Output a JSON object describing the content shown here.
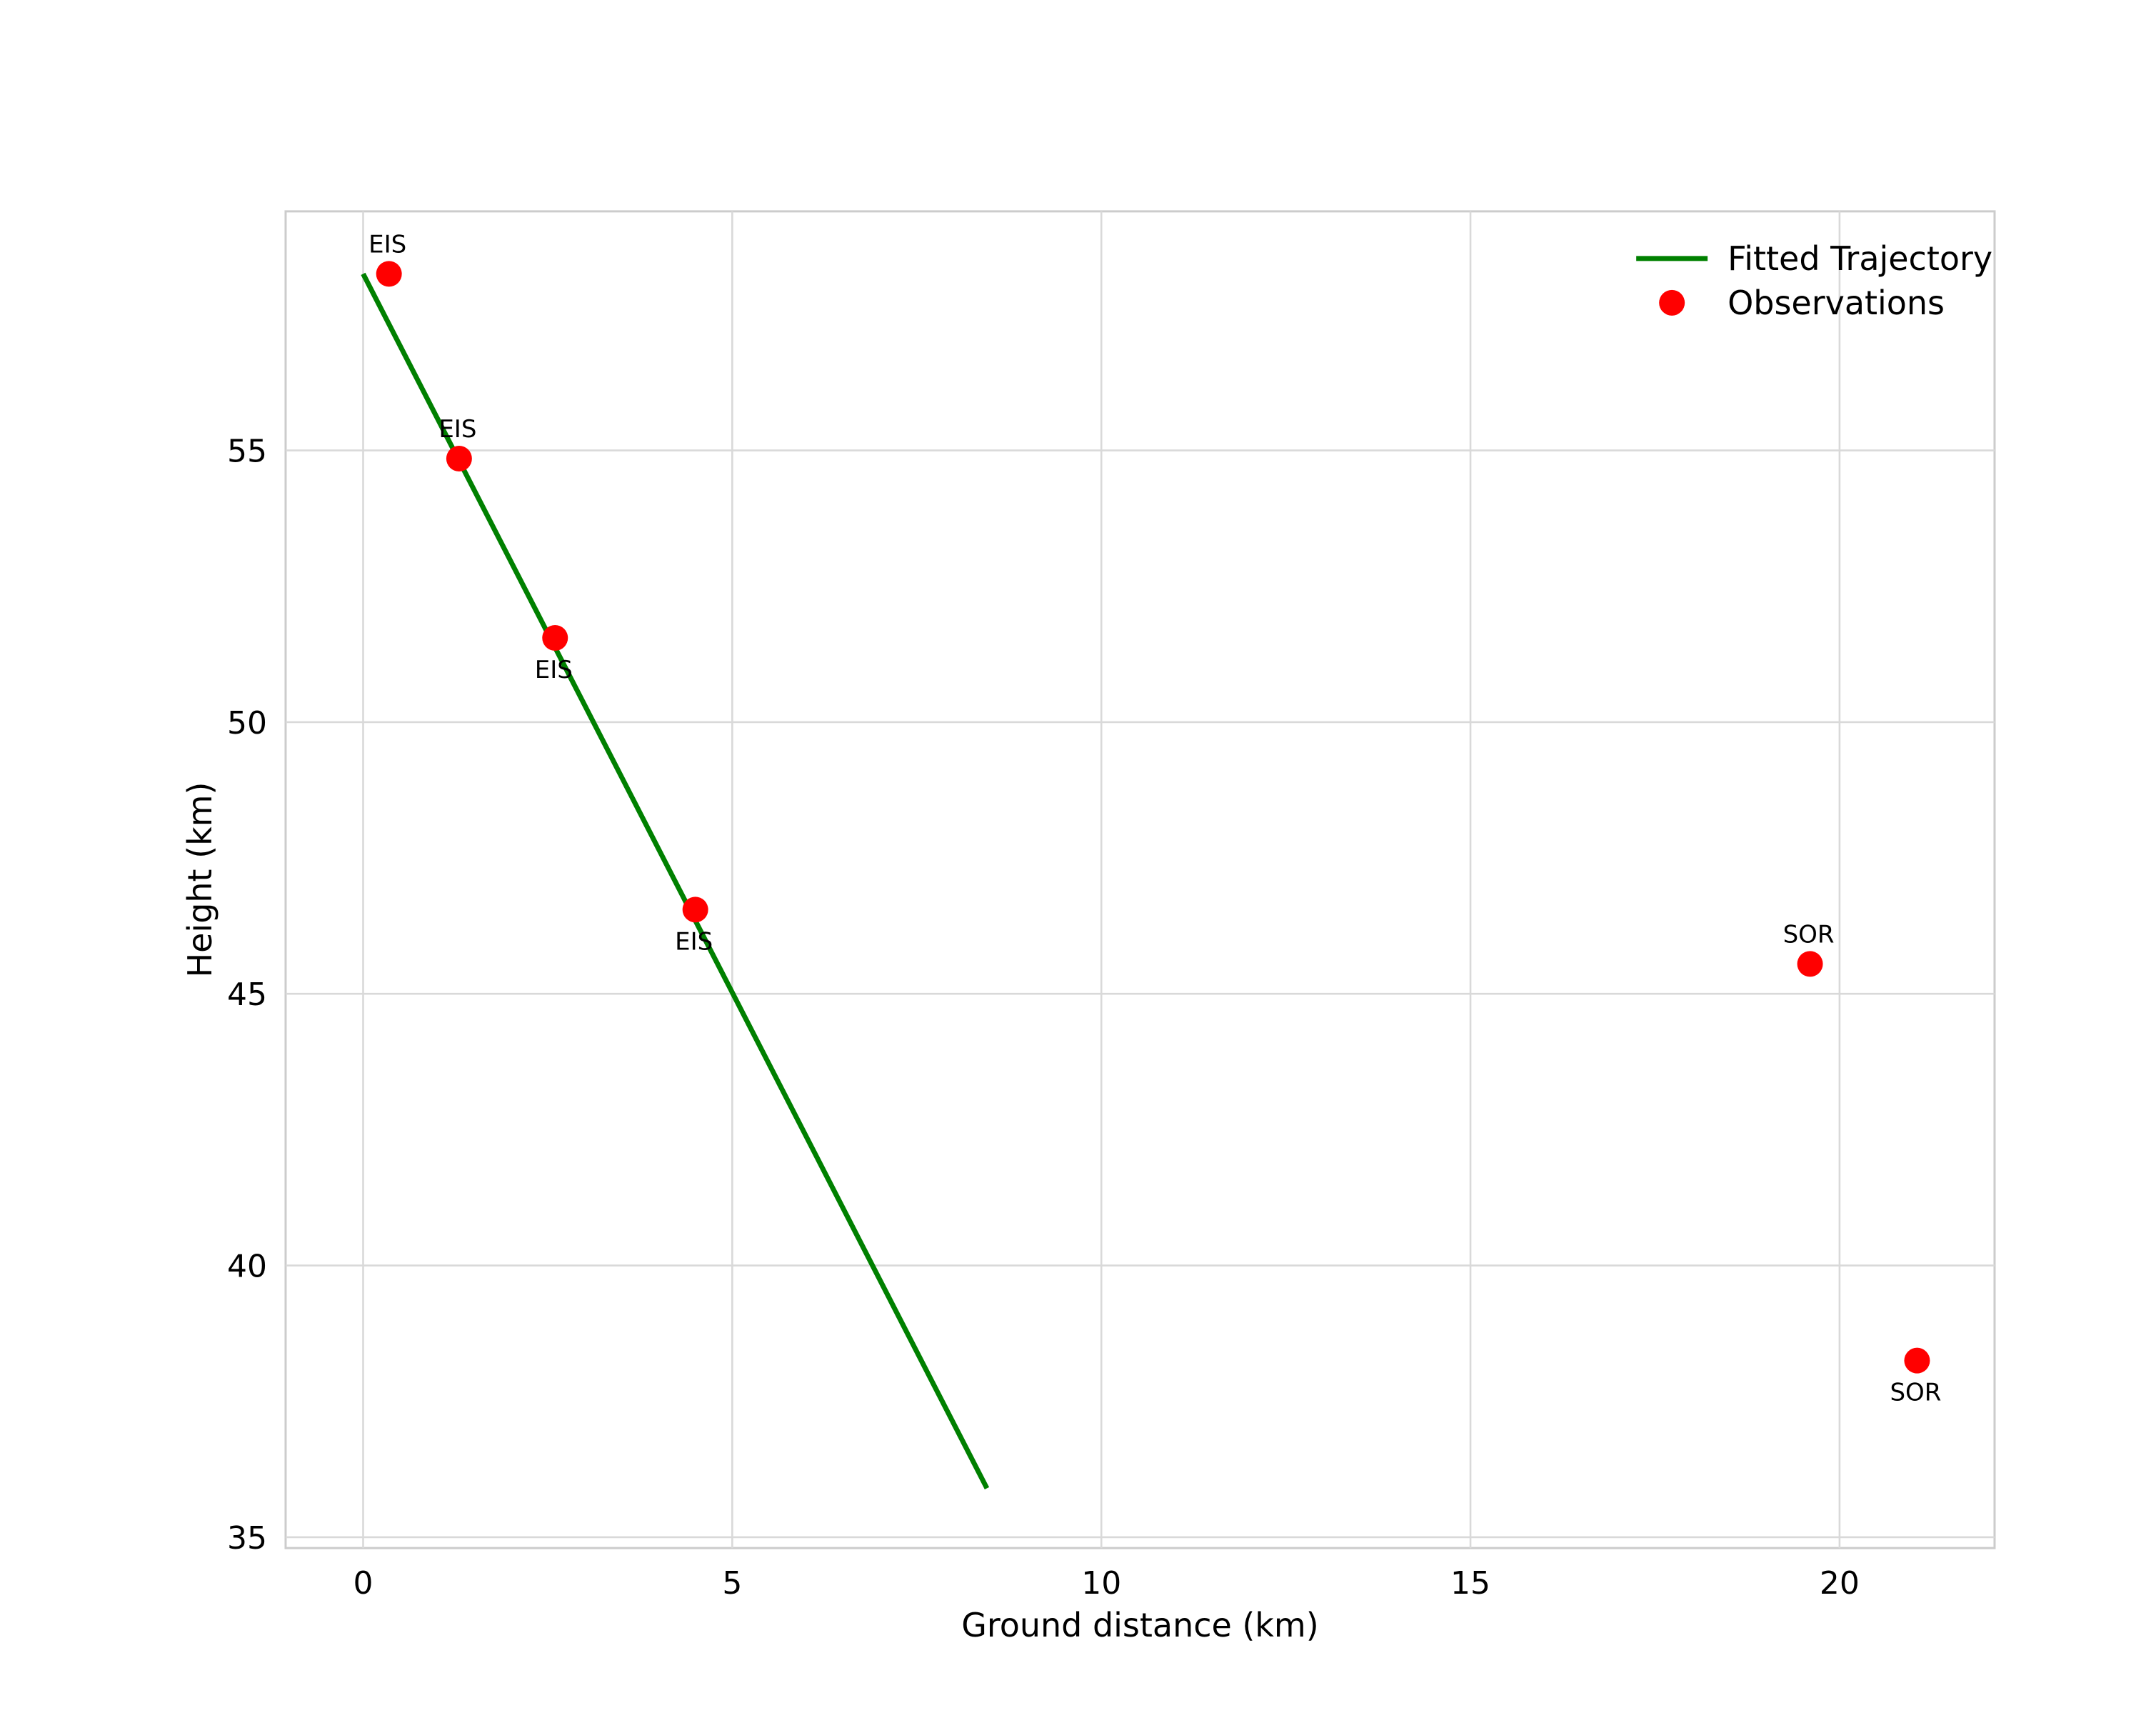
{
  "chart_data": {
    "type": "scatter",
    "title": "",
    "xlabel": "Ground distance (km)",
    "ylabel": "Height (km)",
    "xlim": [
      -1.05,
      22.1
    ],
    "ylim": [
      34.8,
      59.4
    ],
    "x_ticks": [
      0,
      5,
      10,
      15,
      20
    ],
    "y_ticks": [
      35,
      40,
      45,
      50,
      55
    ],
    "grid": true,
    "background_color": "#ffffff",
    "grid_color": "#d9d9d9",
    "border_color": "#cccccc",
    "legend": {
      "position": "upper right",
      "entries": [
        {
          "label": "Fitted Trajectory",
          "type": "line",
          "color": "#008000"
        },
        {
          "label": "Observations",
          "type": "marker",
          "color": "#ff0000"
        }
      ]
    },
    "series": [
      {
        "name": "Fitted Trajectory",
        "type": "line",
        "color": "#008000",
        "points": [
          [
            0.0,
            58.25
          ],
          [
            8.45,
            35.9
          ]
        ]
      },
      {
        "name": "Observations",
        "type": "scatter",
        "color": "#ff0000",
        "points": [
          {
            "x": 0.35,
            "y": 58.25,
            "label": "EIS",
            "label_pos": "above"
          },
          {
            "x": 1.3,
            "y": 54.85,
            "label": "EIS",
            "label_pos": "above"
          },
          {
            "x": 2.6,
            "y": 51.55,
            "label": "EIS",
            "label_pos": "below"
          },
          {
            "x": 4.5,
            "y": 46.55,
            "label": "EIS",
            "label_pos": "below"
          },
          {
            "x": 19.6,
            "y": 45.55,
            "label": "SOR",
            "label_pos": "above"
          },
          {
            "x": 21.05,
            "y": 38.25,
            "label": "SOR",
            "label_pos": "below"
          }
        ]
      }
    ]
  }
}
